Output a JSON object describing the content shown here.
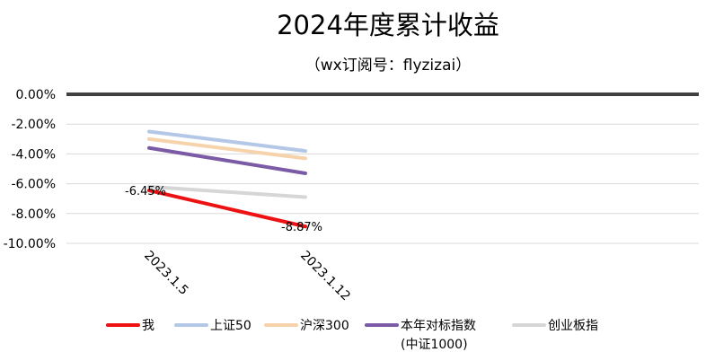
{
  "chart_data": {
    "type": "line",
    "title": "2024年度累计收益",
    "subtitle": "（wx订阅号：flyzizai）",
    "categories": [
      "2023.1.5",
      "2023.1.12"
    ],
    "ylim": [
      -10,
      0
    ],
    "y_ticks": [
      0,
      -2,
      -4,
      -6,
      -8,
      -10
    ],
    "y_tick_labels": [
      "0.00%",
      "-2.00%",
      "-4.00%",
      "-6.00%",
      "-8.00%",
      "-10.00%"
    ],
    "grid": true,
    "legend_position": "bottom",
    "series": [
      {
        "name": "我",
        "values": [
          -6.45,
          -8.87
        ],
        "color": "#ee1111",
        "data_labels": [
          "-6.45%",
          "-8.87%"
        ]
      },
      {
        "name": "上证50",
        "values": [
          -2.5,
          -3.8
        ],
        "color": "#b3c7e6"
      },
      {
        "name": "沪深300",
        "values": [
          -3.0,
          -4.3
        ],
        "color": "#f7d3ac"
      },
      {
        "name": "本年对标指数",
        "name_line2": "(中证1000)",
        "values": [
          -3.6,
          -5.3
        ],
        "color": "#7b5aa6"
      },
      {
        "name": "创业板指",
        "values": [
          -6.2,
          -6.9
        ],
        "color": "#d6d6d6"
      }
    ]
  }
}
